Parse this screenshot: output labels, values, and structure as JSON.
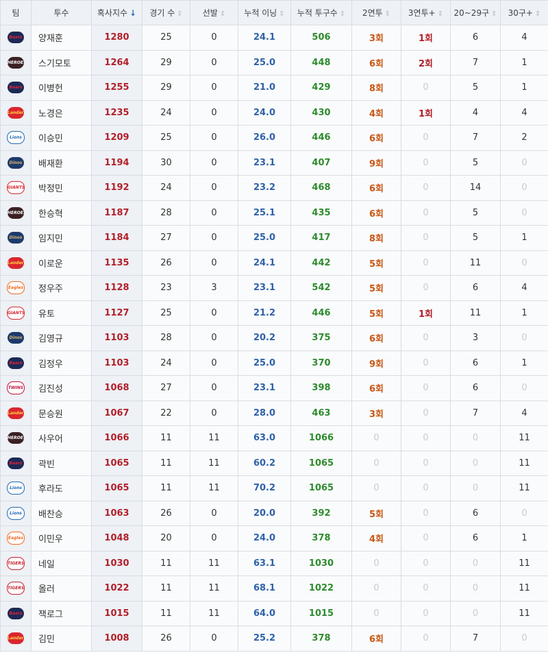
{
  "columns": [
    {
      "label": "팀",
      "sort": ""
    },
    {
      "label": "투수",
      "sort": ""
    },
    {
      "label": "혹사지수",
      "sort": "↓",
      "active": true
    },
    {
      "label": "경기 수",
      "sort": "⇕"
    },
    {
      "label": "선발",
      "sort": "⇕"
    },
    {
      "label": "누적 이닝",
      "sort": "⇕"
    },
    {
      "label": "누적 투구수",
      "sort": "⇕"
    },
    {
      "label": "2연투",
      "sort": "⇕"
    },
    {
      "label": "3연투+",
      "sort": "⇕"
    },
    {
      "label": "20~29구",
      "sort": "⇕"
    },
    {
      "label": "30구+",
      "sort": "⇕"
    }
  ],
  "team_logos": {
    "bears": {
      "icon": "bears-logo-icon",
      "text": "Bears",
      "bg": "#1b2a55",
      "fg": "#e0223a"
    },
    "heroes": {
      "icon": "heroes-logo-icon",
      "text": "HEROES",
      "bg": "#3a2024",
      "fg": "#ffffff"
    },
    "landers": {
      "icon": "landers-logo-icon",
      "text": "Landers",
      "bg": "#d9262e",
      "fg": "#ffd24a"
    },
    "lions": {
      "icon": "lions-logo-icon",
      "text": "Lions",
      "bg": "#ffffff",
      "fg": "#1f6ab5"
    },
    "dinos": {
      "icon": "dinos-logo-icon",
      "text": "Dinos",
      "bg": "#1d3a6b",
      "fg": "#d6b56e"
    },
    "giants": {
      "icon": "giants-logo-icon",
      "text": "GIANTS",
      "bg": "#ffffff",
      "fg": "#d9262e"
    },
    "eagles": {
      "icon": "eagles-logo-icon",
      "text": "Eagles",
      "bg": "#ffffff",
      "fg": "#f26a21"
    },
    "tigers": {
      "icon": "tigers-logo-icon",
      "text": "TIGERS",
      "bg": "#ffffff",
      "fg": "#c7202d"
    },
    "twins": {
      "icon": "twins-logo-icon",
      "text": "TWINS",
      "bg": "#ffffff",
      "fg": "#c4123f"
    },
    "wiz": {
      "icon": "wiz-logo-icon",
      "text": "wiz",
      "bg": "#222222",
      "fg": "#d9262e"
    }
  },
  "rows": [
    {
      "team": "bears",
      "name": "양재훈",
      "score": "1280",
      "games": "25",
      "starts": "0",
      "innings": "24.1",
      "pitches": "506",
      "c2": "3회",
      "c3": "1회",
      "p20": "6",
      "p30": "4"
    },
    {
      "team": "heroes",
      "name": "스기모토",
      "score": "1264",
      "games": "29",
      "starts": "0",
      "innings": "25.0",
      "pitches": "448",
      "c2": "6회",
      "c3": "2회",
      "p20": "7",
      "p30": "1"
    },
    {
      "team": "bears",
      "name": "이병헌",
      "score": "1255",
      "games": "29",
      "starts": "0",
      "innings": "21.0",
      "pitches": "429",
      "c2": "8회",
      "c3": "0",
      "p20": "5",
      "p30": "1"
    },
    {
      "team": "landers",
      "name": "노경은",
      "score": "1235",
      "games": "24",
      "starts": "0",
      "innings": "24.0",
      "pitches": "430",
      "c2": "4회",
      "c3": "1회",
      "p20": "4",
      "p30": "4"
    },
    {
      "team": "lions",
      "name": "이승민",
      "score": "1209",
      "games": "25",
      "starts": "0",
      "innings": "26.0",
      "pitches": "446",
      "c2": "6회",
      "c3": "0",
      "p20": "7",
      "p30": "2"
    },
    {
      "team": "dinos",
      "name": "배재환",
      "score": "1194",
      "games": "30",
      "starts": "0",
      "innings": "23.1",
      "pitches": "407",
      "c2": "9회",
      "c3": "0",
      "p20": "5",
      "p30": "0"
    },
    {
      "team": "giants",
      "name": "박정민",
      "score": "1192",
      "games": "24",
      "starts": "0",
      "innings": "23.2",
      "pitches": "468",
      "c2": "6회",
      "c3": "0",
      "p20": "14",
      "p30": "0"
    },
    {
      "team": "heroes",
      "name": "한승혁",
      "score": "1187",
      "games": "28",
      "starts": "0",
      "innings": "25.1",
      "pitches": "435",
      "c2": "6회",
      "c3": "0",
      "p20": "5",
      "p30": "0"
    },
    {
      "team": "dinos",
      "name": "임지민",
      "score": "1184",
      "games": "27",
      "starts": "0",
      "innings": "25.0",
      "pitches": "417",
      "c2": "8회",
      "c3": "0",
      "p20": "5",
      "p30": "1"
    },
    {
      "team": "landers",
      "name": "이로운",
      "score": "1135",
      "games": "26",
      "starts": "0",
      "innings": "24.1",
      "pitches": "442",
      "c2": "5회",
      "c3": "0",
      "p20": "11",
      "p30": "0"
    },
    {
      "team": "eagles",
      "name": "정우주",
      "score": "1128",
      "games": "23",
      "starts": "3",
      "innings": "23.1",
      "pitches": "542",
      "c2": "5회",
      "c3": "0",
      "p20": "6",
      "p30": "4"
    },
    {
      "team": "giants",
      "name": "유토",
      "score": "1127",
      "games": "25",
      "starts": "0",
      "innings": "21.2",
      "pitches": "446",
      "c2": "5회",
      "c3": "1회",
      "p20": "11",
      "p30": "1"
    },
    {
      "team": "dinos",
      "name": "김영규",
      "score": "1103",
      "games": "28",
      "starts": "0",
      "innings": "20.2",
      "pitches": "375",
      "c2": "6회",
      "c3": "0",
      "p20": "3",
      "p30": "0"
    },
    {
      "team": "bears",
      "name": "김정우",
      "score": "1103",
      "games": "24",
      "starts": "0",
      "innings": "25.0",
      "pitches": "370",
      "c2": "9회",
      "c3": "0",
      "p20": "6",
      "p30": "1"
    },
    {
      "team": "twins",
      "name": "김진성",
      "score": "1068",
      "games": "27",
      "starts": "0",
      "innings": "23.1",
      "pitches": "398",
      "c2": "6회",
      "c3": "0",
      "p20": "6",
      "p30": "0"
    },
    {
      "team": "landers",
      "name": "문승원",
      "score": "1067",
      "games": "22",
      "starts": "0",
      "innings": "28.0",
      "pitches": "463",
      "c2": "3회",
      "c3": "0",
      "p20": "7",
      "p30": "4"
    },
    {
      "team": "heroes",
      "name": "사우어",
      "score": "1066",
      "games": "11",
      "starts": "11",
      "innings": "63.0",
      "pitches": "1066",
      "c2": "0",
      "c3": "0",
      "p20": "0",
      "p30": "11"
    },
    {
      "team": "bears",
      "name": "곽빈",
      "score": "1065",
      "games": "11",
      "starts": "11",
      "innings": "60.2",
      "pitches": "1065",
      "c2": "0",
      "c3": "0",
      "p20": "0",
      "p30": "11"
    },
    {
      "team": "lions",
      "name": "후라도",
      "score": "1065",
      "games": "11",
      "starts": "11",
      "innings": "70.2",
      "pitches": "1065",
      "c2": "0",
      "c3": "0",
      "p20": "0",
      "p30": "11"
    },
    {
      "team": "lions",
      "name": "배찬승",
      "score": "1063",
      "games": "26",
      "starts": "0",
      "innings": "20.0",
      "pitches": "392",
      "c2": "5회",
      "c3": "0",
      "p20": "6",
      "p30": "0"
    },
    {
      "team": "eagles",
      "name": "이민우",
      "score": "1048",
      "games": "20",
      "starts": "0",
      "innings": "24.0",
      "pitches": "378",
      "c2": "4회",
      "c3": "0",
      "p20": "6",
      "p30": "1"
    },
    {
      "team": "tigers",
      "name": "네일",
      "score": "1030",
      "games": "11",
      "starts": "11",
      "innings": "63.1",
      "pitches": "1030",
      "c2": "0",
      "c3": "0",
      "p20": "0",
      "p30": "11"
    },
    {
      "team": "tigers",
      "name": "올러",
      "score": "1022",
      "games": "11",
      "starts": "11",
      "innings": "68.1",
      "pitches": "1022",
      "c2": "0",
      "c3": "0",
      "p20": "0",
      "p30": "11"
    },
    {
      "team": "bears",
      "name": "잭로그",
      "score": "1015",
      "games": "11",
      "starts": "11",
      "innings": "64.0",
      "pitches": "1015",
      "c2": "0",
      "c3": "0",
      "p20": "0",
      "p30": "11"
    },
    {
      "team": "landers",
      "name": "김민",
      "score": "1008",
      "games": "26",
      "starts": "0",
      "innings": "25.2",
      "pitches": "378",
      "c2": "6회",
      "c3": "0",
      "p20": "7",
      "p30": "0"
    }
  ]
}
